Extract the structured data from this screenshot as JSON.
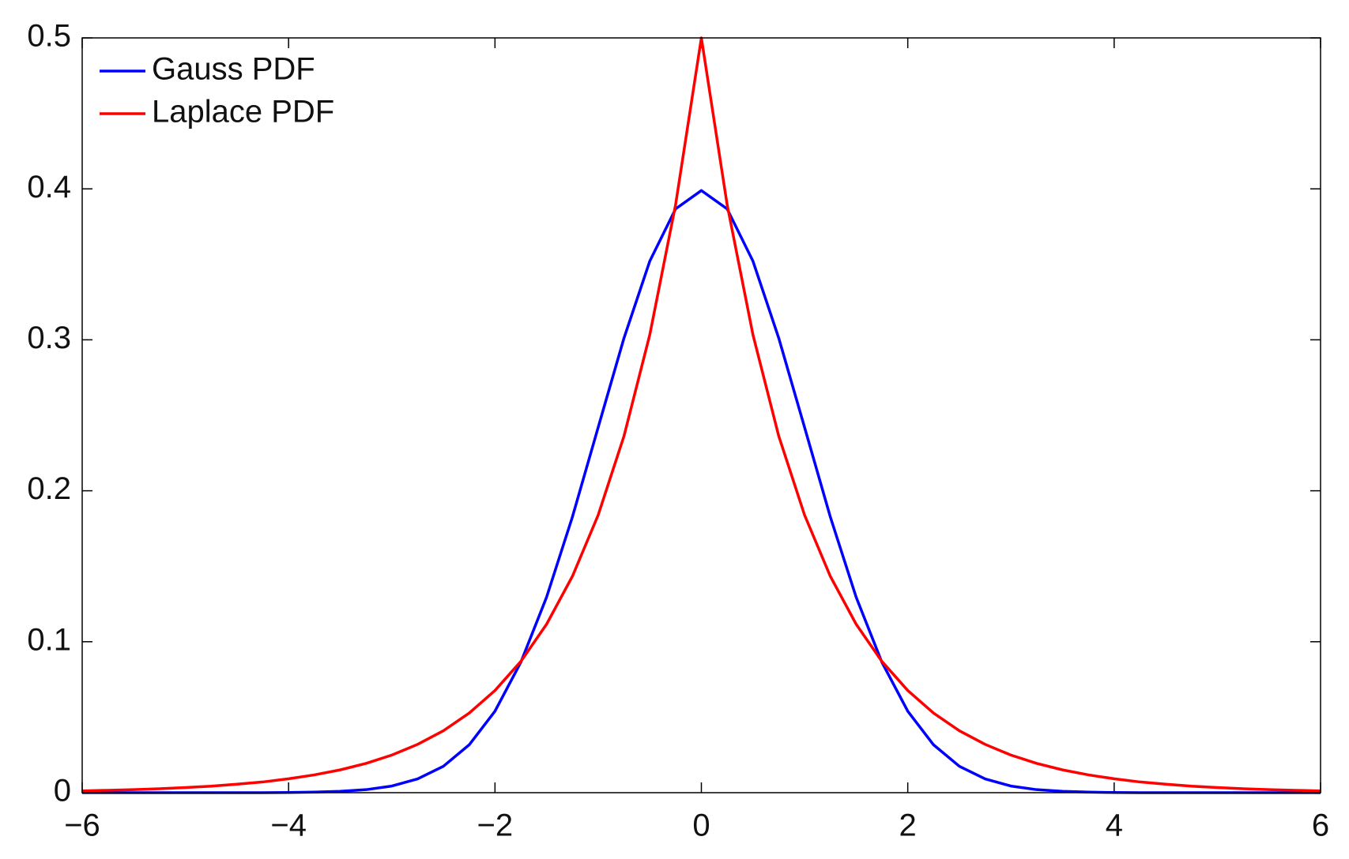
{
  "chart_data": {
    "type": "line",
    "x": [
      -6,
      -5.75,
      -5.5,
      -5.25,
      -5,
      -4.75,
      -4.5,
      -4.25,
      -4,
      -3.75,
      -3.5,
      -3.25,
      -3,
      -2.75,
      -2.5,
      -2.25,
      -2,
      -1.75,
      -1.5,
      -1.25,
      -1,
      -0.75,
      -0.5,
      -0.25,
      0,
      0.25,
      0.5,
      0.75,
      1,
      1.25,
      1.5,
      1.75,
      2,
      2.25,
      2.5,
      2.75,
      3,
      3.25,
      3.5,
      3.75,
      4,
      4.25,
      4.5,
      4.75,
      5,
      5.25,
      5.5,
      5.75,
      6
    ],
    "series": [
      {
        "name": "Gauss PDF",
        "color": "#0000ff",
        "values": [
          0,
          0,
          0,
          0,
          0,
          0,
          0,
          0,
          0.0001,
          0.0004,
          0.0009,
          0.002,
          0.0044,
          0.0091,
          0.0175,
          0.0317,
          0.054,
          0.0863,
          0.1295,
          0.1826,
          0.242,
          0.3011,
          0.3521,
          0.3867,
          0.3989,
          0.3867,
          0.3521,
          0.3011,
          0.242,
          0.1826,
          0.1295,
          0.0863,
          0.054,
          0.0317,
          0.0175,
          0.0091,
          0.0044,
          0.002,
          0.0009,
          0.0004,
          0.0001,
          0,
          0,
          0,
          0,
          0,
          0,
          0,
          0
        ]
      },
      {
        "name": "Laplace PDF",
        "color": "#ff0000",
        "values": [
          0.0012,
          0.0016,
          0.002,
          0.0026,
          0.0034,
          0.0043,
          0.0056,
          0.0071,
          0.0092,
          0.0118,
          0.0151,
          0.0194,
          0.0249,
          0.032,
          0.041,
          0.0527,
          0.0677,
          0.0869,
          0.1116,
          0.1433,
          0.1839,
          0.2362,
          0.3033,
          0.3894,
          0.5,
          0.3894,
          0.3033,
          0.2362,
          0.1839,
          0.1433,
          0.1116,
          0.0869,
          0.0677,
          0.0527,
          0.041,
          0.032,
          0.0249,
          0.0194,
          0.0151,
          0.0118,
          0.0092,
          0.0071,
          0.0056,
          0.0043,
          0.0034,
          0.0026,
          0.002,
          0.0016,
          0.0012
        ]
      }
    ],
    "xlim": [
      -6,
      6
    ],
    "xticks": [
      {
        "value": -6,
        "label": "−6"
      },
      {
        "value": -4,
        "label": "−4"
      },
      {
        "value": -2,
        "label": "−2"
      },
      0,
      2,
      4,
      6
    ],
    "ylim": [
      0,
      0.5
    ],
    "yticks": [
      0,
      0.1,
      0.2,
      0.3,
      0.4,
      0.5
    ],
    "grid": false,
    "legend": "upper left"
  }
}
